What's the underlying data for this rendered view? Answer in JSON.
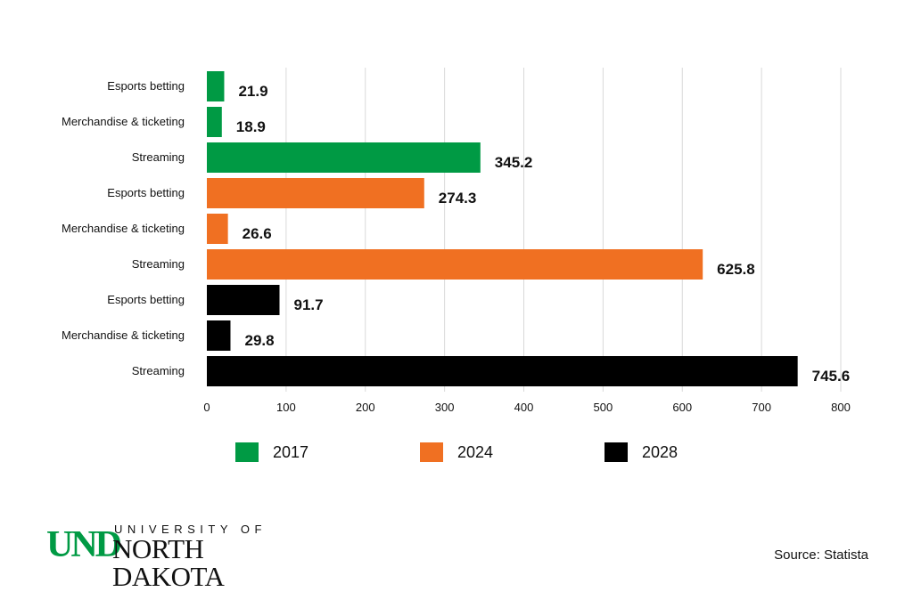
{
  "chart_data": {
    "type": "bar",
    "orientation": "horizontal",
    "categories": [
      "Esports betting",
      "Merchandise & ticketing",
      "Streaming",
      "Esports betting",
      "Merchandise & ticketing",
      "Streaming",
      "Esports betting",
      "Merchandise & ticketing",
      "Streaming"
    ],
    "values": [
      21.9,
      18.9,
      345.2,
      274.3,
      26.6,
      625.8,
      91.7,
      29.8,
      745.6
    ],
    "value_labels": [
      "21.9",
      "18.9",
      "345.2",
      "274.3",
      "26.6",
      "625.8",
      "91.7",
      "29.8",
      "745.6"
    ],
    "bar_groups": [
      "2017",
      "2017",
      "2017",
      "2024",
      "2024",
      "2024",
      "2028",
      "2028",
      "2028"
    ],
    "legend": [
      {
        "name": "2017",
        "color": "#009a44"
      },
      {
        "name": "2024",
        "color": "#f07022"
      },
      {
        "name": "2028",
        "color": "#000000"
      }
    ],
    "xlim": [
      0,
      800
    ],
    "xticks": [
      "0",
      "100",
      "200",
      "300",
      "400",
      "500",
      "600",
      "700",
      "800"
    ],
    "grid": "vertical",
    "legend_position": "bottom"
  },
  "logo": {
    "und": "UND",
    "university_of": "UNIVERSITY OF",
    "north_dakota": "NORTH DAKOTA"
  },
  "source": "Source: Statista"
}
